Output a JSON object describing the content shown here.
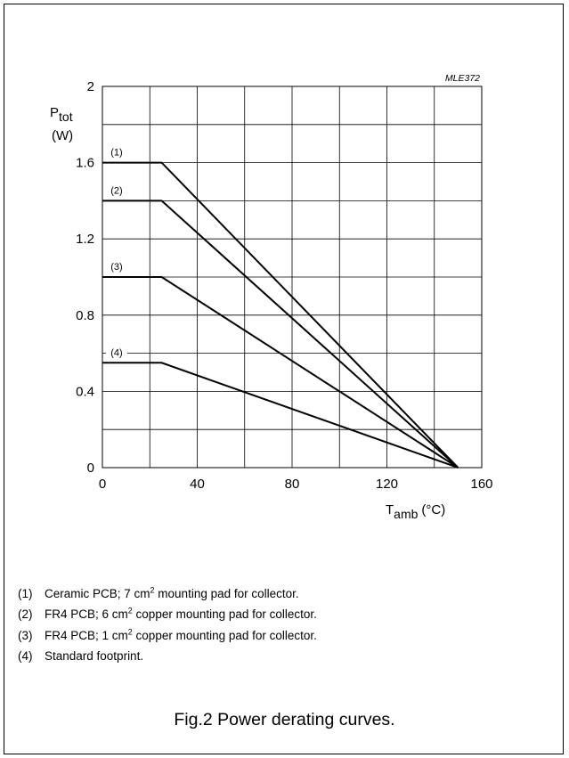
{
  "chart_data": {
    "type": "line",
    "chart_id": "MLE372",
    "ylabel": {
      "symbol": "P",
      "subscript": "tot",
      "unit": "(W)"
    },
    "xlabel": {
      "symbol": "T",
      "subscript": "amb",
      "unit": "(°C)"
    },
    "xlim": [
      0,
      160
    ],
    "ylim": [
      0,
      2
    ],
    "x_ticks": [
      0,
      40,
      80,
      120,
      160
    ],
    "x_tick_labels": [
      "0",
      "40",
      "80",
      "120",
      "160"
    ],
    "y_ticks": [
      0,
      0.4,
      0.8,
      1.2,
      1.6,
      2
    ],
    "y_tick_labels": [
      "0",
      "0.4",
      "0.8",
      "1.2",
      "1.6",
      "2"
    ],
    "grid": {
      "x_step": 20,
      "y_step": 0.2
    },
    "series": [
      {
        "label": "(1)",
        "x": [
          0,
          25,
          150
        ],
        "y": [
          1.6,
          1.6,
          0
        ]
      },
      {
        "label": "(2)",
        "x": [
          0,
          25,
          150
        ],
        "y": [
          1.4,
          1.4,
          0
        ]
      },
      {
        "label": "(3)",
        "x": [
          0,
          25,
          150
        ],
        "y": [
          1.0,
          1.0,
          0
        ]
      },
      {
        "label": "(4)",
        "x": [
          0,
          25,
          150
        ],
        "y": [
          0.55,
          0.55,
          0
        ]
      }
    ]
  },
  "notes": [
    {
      "num": "(1)",
      "before": "Ceramic PCB; 7 cm",
      "sup": "2",
      "after": " mounting pad for collector."
    },
    {
      "num": "(2)",
      "before": "FR4 PCB; 6 cm",
      "sup": "2",
      "after": " copper mounting pad for collector."
    },
    {
      "num": "(3)",
      "before": "FR4 PCB; 1 cm",
      "sup": "2",
      "after": " copper mounting pad for collector."
    },
    {
      "num": "(4)",
      "before": "Standard footprint.",
      "sup": "",
      "after": ""
    }
  ],
  "caption": "Fig.2  Power derating curves."
}
